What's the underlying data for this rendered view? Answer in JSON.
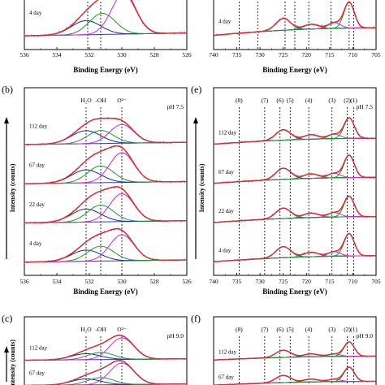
{
  "chart_data": [
    {
      "id": "a",
      "type": "line",
      "panel_label": "",
      "xlabel": "Binding Energy (eV)",
      "ylabel": "",
      "x_ticks": [
        536,
        534,
        532,
        530,
        528,
        526
      ],
      "xlim": [
        536,
        526
      ],
      "peak_labels": [],
      "vlines": [
        532.1,
        531.3
      ],
      "curves": [
        {
          "name": "4 day",
          "peaks": [
            {
              "c": 532.2,
              "a": 0.3,
              "w": 0.9
            },
            {
              "c": 531.2,
              "a": 0.45,
              "w": 0.8
            },
            {
              "c": 529.9,
              "a": 0.85,
              "w": 0.75
            }
          ]
        }
      ]
    },
    {
      "id": "d",
      "type": "line",
      "panel_label": "",
      "xlabel": "Binding Energy (eV)",
      "ylabel": "",
      "x_ticks": [
        740,
        735,
        730,
        725,
        720,
        715,
        710,
        705
      ],
      "xlim": [
        740,
        705
      ],
      "peak_labels": [],
      "vlines": [
        734.5,
        730.5,
        724.6,
        722.5,
        719.5,
        714.7,
        710.8,
        709.8
      ],
      "curves": [
        {
          "name": "4 day",
          "peaks": [
            {
              "c": 725,
              "a": 0.25,
              "w": 1.6
            },
            {
              "c": 719,
              "a": 0.1,
              "w": 1.6
            },
            {
              "c": 714,
              "a": 0.12,
              "w": 1.3
            },
            {
              "c": 710.8,
              "a": 0.55,
              "w": 1.1
            }
          ]
        }
      ]
    },
    {
      "id": "b",
      "type": "line",
      "panel_label": "(b)",
      "xlabel": "Binding Energy (eV)",
      "ylabel": "Intensity (counts)",
      "x_ticks": [
        536,
        534,
        532,
        530,
        528,
        526
      ],
      "xlim": [
        536,
        526
      ],
      "peak_labels": [
        {
          "text": "H₂O",
          "x": 532.2
        },
        {
          "text": "-OH",
          "x": 531.3
        },
        {
          "text": "O²⁻",
          "x": 530.0
        }
      ],
      "annotation": "pH 7.5",
      "vlines": [
        532.2,
        531.3,
        530.0
      ],
      "curves": [
        {
          "name": "112 day",
          "peaks": [
            {
              "c": 532.2,
              "a": 0.35,
              "w": 0.9
            },
            {
              "c": 531.3,
              "a": 0.35,
              "w": 0.8
            },
            {
              "c": 530.0,
              "a": 0.5,
              "w": 0.75
            }
          ]
        },
        {
          "name": "67 day",
          "peaks": [
            {
              "c": 532.2,
              "a": 0.35,
              "w": 0.9
            },
            {
              "c": 531.3,
              "a": 0.45,
              "w": 0.8
            },
            {
              "c": 530.0,
              "a": 0.8,
              "w": 0.75
            }
          ]
        },
        {
          "name": "22 day",
          "peaks": [
            {
              "c": 532.2,
              "a": 0.35,
              "w": 0.9
            },
            {
              "c": 531.3,
              "a": 0.45,
              "w": 0.8
            },
            {
              "c": 530.0,
              "a": 0.75,
              "w": 0.75
            }
          ]
        },
        {
          "name": "4 day",
          "peaks": [
            {
              "c": 532.2,
              "a": 0.3,
              "w": 0.9
            },
            {
              "c": 531.3,
              "a": 0.4,
              "w": 0.8
            },
            {
              "c": 530.0,
              "a": 0.7,
              "w": 0.75
            }
          ]
        }
      ]
    },
    {
      "id": "e",
      "type": "line",
      "panel_label": "(e)",
      "xlabel": "Binding Energy (eV)",
      "ylabel": "Intensity (counts)",
      "x_ticks": [
        740,
        735,
        730,
        725,
        720,
        715,
        710,
        705
      ],
      "xlim": [
        740,
        705
      ],
      "peak_labels": [
        {
          "text": "(8)",
          "x": 734.5
        },
        {
          "text": "(7)",
          "x": 729.0
        },
        {
          "text": "(6)",
          "x": 725.7
        },
        {
          "text": "(5)",
          "x": 723.5
        },
        {
          "text": "(4)",
          "x": 719.5
        },
        {
          "text": "(3)",
          "x": 714.5
        },
        {
          "text": "(2)",
          "x": 711.2
        },
        {
          "text": "(1)",
          "x": 709.8
        }
      ],
      "annotation": "pH 7.5",
      "vlines": [
        734.5,
        729.0,
        725.7,
        723.5,
        719.5,
        714.5,
        711.2,
        709.8
      ],
      "curves": [
        {
          "name": "112 day",
          "peaks": [
            {
              "c": 725,
              "a": 0.28,
              "w": 1.6
            },
            {
              "c": 719,
              "a": 0.12,
              "w": 1.6
            },
            {
              "c": 714,
              "a": 0.12,
              "w": 1.3
            },
            {
              "c": 710.8,
              "a": 0.55,
              "w": 1.1
            }
          ]
        },
        {
          "name": "67 day",
          "peaks": [
            {
              "c": 725,
              "a": 0.3,
              "w": 1.6
            },
            {
              "c": 719,
              "a": 0.12,
              "w": 1.6
            },
            {
              "c": 714,
              "a": 0.12,
              "w": 1.3
            },
            {
              "c": 710.8,
              "a": 0.6,
              "w": 1.1
            }
          ]
        },
        {
          "name": "22 day",
          "peaks": [
            {
              "c": 725,
              "a": 0.28,
              "w": 1.6
            },
            {
              "c": 719,
              "a": 0.12,
              "w": 1.6
            },
            {
              "c": 714,
              "a": 0.12,
              "w": 1.3
            },
            {
              "c": 710.8,
              "a": 0.55,
              "w": 1.1
            }
          ]
        },
        {
          "name": "4 day",
          "peaks": [
            {
              "c": 725,
              "a": 0.3,
              "w": 1.6
            },
            {
              "c": 719,
              "a": 0.12,
              "w": 1.6
            },
            {
              "c": 714,
              "a": 0.12,
              "w": 1.3
            },
            {
              "c": 710.8,
              "a": 0.6,
              "w": 1.1
            }
          ]
        }
      ]
    },
    {
      "id": "c",
      "type": "line",
      "panel_label": "(c)",
      "xlabel": "",
      "ylabel": "Intensity (counts)",
      "x_ticks": [],
      "xlim": [
        536,
        526
      ],
      "peak_labels": [
        {
          "text": "H₂O",
          "x": 532.2
        },
        {
          "text": "-OH",
          "x": 531.3
        },
        {
          "text": "O²⁻",
          "x": 530.0
        }
      ],
      "annotation": "pH 9.0",
      "vlines": [
        532.2,
        531.3,
        530.0
      ],
      "curves": [
        {
          "name": "112 day",
          "peaks": [
            {
              "c": 532.2,
              "a": 0.25,
              "w": 0.9
            },
            {
              "c": 531.3,
              "a": 0.3,
              "w": 0.8
            },
            {
              "c": 530.0,
              "a": 0.9,
              "w": 0.75
            }
          ]
        },
        {
          "name": "67 day",
          "peaks": [
            {
              "c": 532.2,
              "a": 0.25,
              "w": 0.9
            },
            {
              "c": 531.3,
              "a": 0.3,
              "w": 0.8
            },
            {
              "c": 530.0,
              "a": 0.9,
              "w": 0.75
            }
          ]
        }
      ]
    },
    {
      "id": "f",
      "type": "line",
      "panel_label": "(f)",
      "xlabel": "",
      "ylabel": "",
      "x_ticks": [],
      "xlim": [
        740,
        705
      ],
      "peak_labels": [
        {
          "text": "(8)",
          "x": 734.5
        },
        {
          "text": "(7)",
          "x": 729.0
        },
        {
          "text": "(6)",
          "x": 725.7
        },
        {
          "text": "(5)",
          "x": 723.5
        },
        {
          "text": "(4)",
          "x": 719.5
        },
        {
          "text": "(3)",
          "x": 714.5
        },
        {
          "text": "(2)",
          "x": 711.2
        },
        {
          "text": "(1)",
          "x": 709.8
        }
      ],
      "annotation": "pH 9.0",
      "vlines": [
        734.5,
        729.0,
        725.7,
        723.5,
        719.5,
        714.5,
        711.2,
        709.8
      ],
      "curves": [
        {
          "name": "112 day",
          "peaks": [
            {
              "c": 725,
              "a": 0.3,
              "w": 1.6
            },
            {
              "c": 719,
              "a": 0.12,
              "w": 1.6
            },
            {
              "c": 714,
              "a": 0.1,
              "w": 1.3
            },
            {
              "c": 710.8,
              "a": 0.6,
              "w": 1.1
            }
          ]
        },
        {
          "name": "67 day",
          "peaks": [
            {
              "c": 725,
              "a": 0.3,
              "w": 1.6
            },
            {
              "c": 719,
              "a": 0.12,
              "w": 1.6
            },
            {
              "c": 714,
              "a": 0.1,
              "w": 1.3
            },
            {
              "c": 710.8,
              "a": 0.6,
              "w": 1.1
            }
          ]
        }
      ]
    }
  ],
  "colors": {
    "envelope": "#e8202a",
    "o2_component": "#e020d8",
    "oh_component": "#1a9a2a",
    "h2o_component": "#1c2a8c",
    "baseline": "#2b3fbf",
    "data_points": "#7a7a7a"
  }
}
